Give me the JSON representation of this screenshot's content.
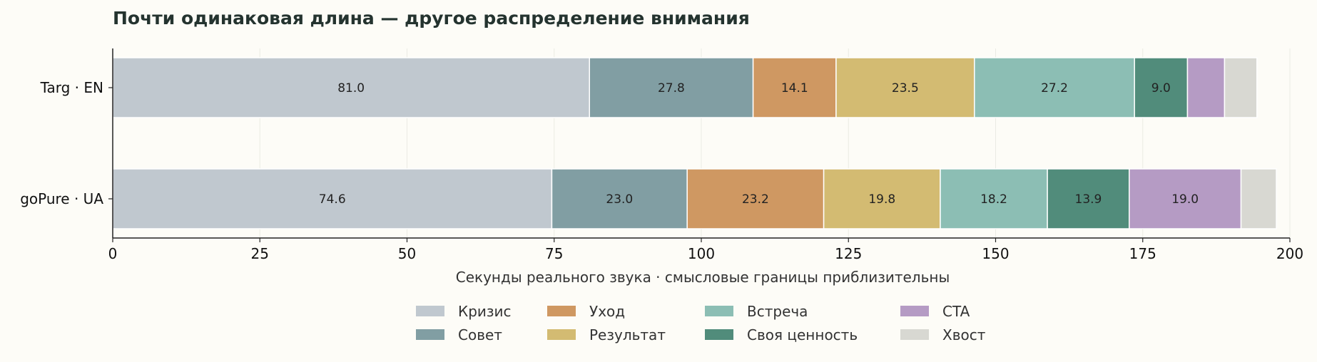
{
  "chart_data": {
    "type": "bar",
    "orientation": "horizontal",
    "stacked": true,
    "title": "Почти одинаковая длина — другое распределение внимания",
    "xlabel": "Секунды реального звука · смысловые границы приблизительны",
    "ylabel": "",
    "xlim": [
      0,
      200
    ],
    "xticks": [
      0,
      25,
      50,
      75,
      100,
      125,
      150,
      175,
      200
    ],
    "grid": "vertical",
    "legend_position": "bottom",
    "categories": [
      "Targ · EN",
      "goPure · UA"
    ],
    "series": [
      {
        "name": "Кризис",
        "color": "#c0c8cf",
        "values": [
          81.0,
          74.6
        ],
        "labels": [
          "81.0",
          "74.6"
        ]
      },
      {
        "name": "Совет",
        "color": "#819ea3",
        "values": [
          27.8,
          23.0
        ],
        "labels": [
          "27.8",
          "23.0"
        ]
      },
      {
        "name": "Уход",
        "color": "#cf9862",
        "values": [
          14.1,
          23.2
        ],
        "labels": [
          "14.1",
          "23.2"
        ]
      },
      {
        "name": "Результат",
        "color": "#d3bb72",
        "values": [
          23.5,
          19.8
        ],
        "labels": [
          "23.5",
          "19.8"
        ]
      },
      {
        "name": "Встреча",
        "color": "#8cbeb4",
        "values": [
          27.2,
          18.2
        ],
        "labels": [
          "27.2",
          "18.2"
        ]
      },
      {
        "name": "Своя ценность",
        "color": "#518c7b",
        "values": [
          9.0,
          13.9
        ],
        "labels": [
          "9.0",
          "13.9"
        ]
      },
      {
        "name": "CTA",
        "color": "#b59bc4",
        "values": [
          6.3,
          19.0
        ],
        "labels": [
          "",
          "19.0"
        ]
      },
      {
        "name": "Хвост",
        "color": "#d8d8d2",
        "values": [
          5.5,
          6.0
        ],
        "labels": [
          "",
          ""
        ]
      }
    ]
  }
}
